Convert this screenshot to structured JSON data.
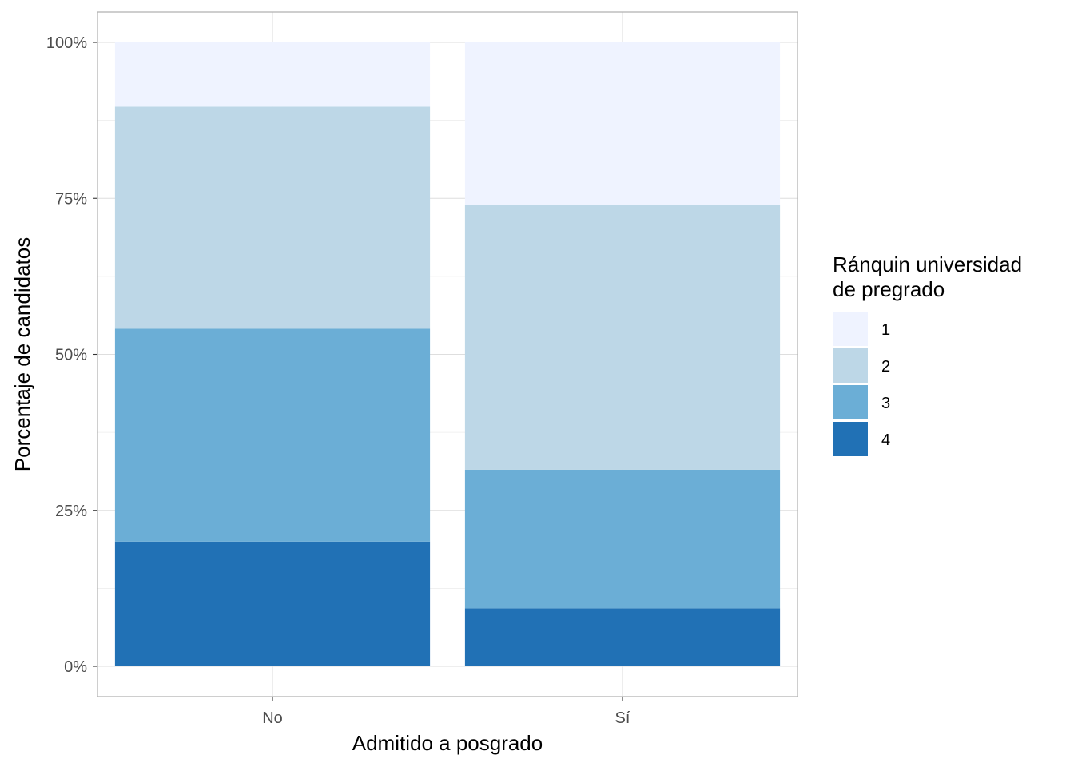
{
  "chart_data": {
    "type": "bar",
    "stacked": true,
    "normalized_percent": true,
    "categories": [
      "No",
      "Sí"
    ],
    "series": [
      {
        "name": "1",
        "color": "#eff3ff",
        "values": [
          10.3,
          26.0
        ]
      },
      {
        "name": "2",
        "color": "#bdd7e7",
        "values": [
          35.6,
          42.5
        ]
      },
      {
        "name": "3",
        "color": "#6baed6",
        "values": [
          34.1,
          22.2
        ]
      },
      {
        "name": "4",
        "color": "#2171b5",
        "values": [
          20.0,
          9.3
        ]
      }
    ],
    "stack_order_bottom_to_top": [
      "4",
      "3",
      "2",
      "1"
    ],
    "xlabel": "Admitido a posgrado",
    "ylabel": "Porcentaje de candidatos",
    "ylim": [
      0,
      100
    ],
    "yticks": [
      0,
      25,
      50,
      75,
      100
    ],
    "ytick_labels": [
      "0%",
      "25%",
      "50%",
      "75%",
      "100%"
    ],
    "grid": true,
    "legend": {
      "title_line1": "Ránquin universidad",
      "title_line2": "de pregrado",
      "position": "right",
      "entries": [
        "1",
        "2",
        "3",
        "4"
      ]
    }
  }
}
